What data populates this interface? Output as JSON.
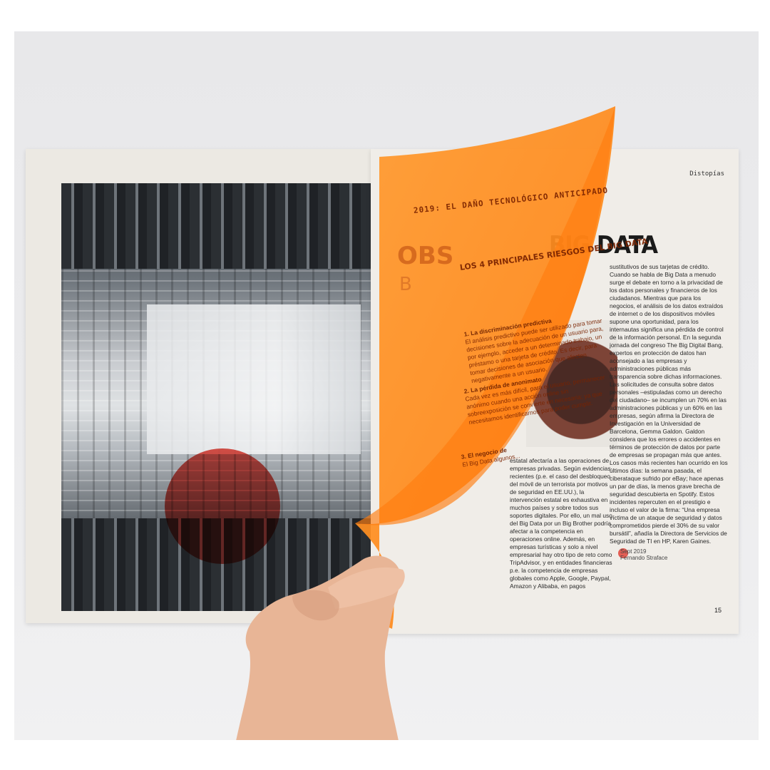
{
  "spread": {
    "section_label": "Distopías",
    "title_partial": "BIG DATA",
    "ghost_title_fragment": "OBS",
    "ghost_dropcap": "B",
    "page_number": "15",
    "column_a": "sustitutivos de sus tarjetas de crédito. Cuando se habla de Big Data a menudo surge el debate en torno a la privacidad de los datos personales y financieros de los ciudadanos. Mientras que para los negocios, el análisis de los datos extraídos de internet o de los dispositivos móviles supone una oportunidad, para los internautas significa una pérdida de control de la información personal. En la segunda jornada del congreso The Big Digital Bang, expertos en protección de datos han aconsejado a las empresas y administraciones públicas más transparencia sobre dichas informaciones. Las solicitudes de consulta sobre datos personales –estipuladas como un derecho del ciudadano– se incumplen un 70% en las administraciones públicas y un 60% en las empresas, según afirma la Directora de Investigación en la Universidad de Barcelona, Gemma Galdon. Galdon considera que los errores o accidentes en términos de protección de datos por parte de empresas se propagan más que antes. Los casos más recientes han ocurrido en los últimos días: la semana pasada, el ciberataque sufrido por eBay; hace apenas un par de días, la menos grave brecha de seguridad descubierta en Spotify. Estos incidentes repercuten en el prestigio e incluso el valor de la firma: “Una empresa víctima de un ataque de seguridad y datos comprometidos pierde el 30% de su valor bursátil”, añadía la Directora de Servicios de Seguridad de TI en HP, Karen Gaines.",
    "column_b": "estatal afectaría a las operaciones de empresas privadas. Según evidencias recientes (p.e. el caso del desbloqueo del móvil de un terrorista por motivos de seguridad en EE.UU.), la intervención estatal es exhaustiva en muchos países y sobre todos sus soportes digitales. Por ello, un mal uso del Big Data por un Big Brother podría afectar a la competencia en operaciones online. Además, en empresas turísticas y solo a nivel empresarial hay otro tipo de reto como TripAdvisor, y en entidades financieras p.e. la competencia de empresas globales como Apple, Google, Paypal, Amazon y Alibaba, en pagos",
    "author_date": "Sept 2019",
    "author_name": "Fernando Straface"
  },
  "sheet": {
    "kicker": "2019: EL DAÑO TECNOLÓGICO ANTICIPADO",
    "heading": "LOS 4 PRINCIPALES RIESGOS DEL BIG DATA",
    "risks": [
      {
        "title": "1. La discriminación predictiva",
        "body": "El análisis predictivo puede ser utilizado para tomar decisiones sobre la adecuación de un usuario para, por ejemplo, acceder a un determinado trabajo, un préstamo o una tarjeta de crédito. Es decir, para tomar decisiones de asociación que afecten negativamente a un usuario."
      },
      {
        "title": "2. La pérdida de anonimato",
        "body": "Cada vez es más difícil, para el usuario, permanecer anónimo cuando una acción online sin sobreexposición se convierte en necesaria; ya que necesitamos identificarnos para poder cumplir."
      },
      {
        "title": "3. El negocio de",
        "body": "El Big Data algunos..."
      }
    ],
    "colors": {
      "sheet": "#ff8a1c",
      "sheet_edge": "#ff7a00",
      "text": "#7a2300"
    }
  },
  "colors": {
    "background": "#e9e9eb",
    "accent_red": "#e0443a"
  }
}
